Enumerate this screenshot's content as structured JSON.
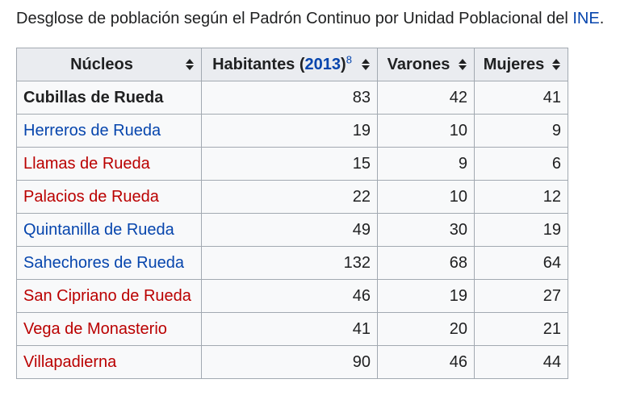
{
  "caption": {
    "text_before": "Desglose de población según el Padrón Continuo por Unidad Poblacional del ",
    "link": "INE",
    "text_after": "."
  },
  "table": {
    "headers": {
      "nucleos": "Núcleos",
      "habitantes_prefix": "Habitantes (",
      "habitantes_year": "2013",
      "habitantes_suffix": ")",
      "habitantes_ref": "8",
      "varones": "Varones",
      "mujeres": "Mujeres"
    },
    "rows": [
      {
        "name": "Cubillas de Rueda",
        "habitantes": "83",
        "varones": "42",
        "mujeres": "41",
        "style": "bold"
      },
      {
        "name": "Herreros de Rueda",
        "habitantes": "19",
        "varones": "10",
        "mujeres": "9",
        "style": "blue-link"
      },
      {
        "name": "Llamas de Rueda",
        "habitantes": "15",
        "varones": "9",
        "mujeres": "6",
        "style": "red-link"
      },
      {
        "name": "Palacios de Rueda",
        "habitantes": "22",
        "varones": "10",
        "mujeres": "12",
        "style": "red-link"
      },
      {
        "name": "Quintanilla de Rueda",
        "habitantes": "49",
        "varones": "30",
        "mujeres": "19",
        "style": "blue-link"
      },
      {
        "name": "Sahechores de Rueda",
        "habitantes": "132",
        "varones": "68",
        "mujeres": "64",
        "style": "blue-link"
      },
      {
        "name": "San Cipriano de Rueda",
        "habitantes": "46",
        "varones": "19",
        "mujeres": "27",
        "style": "red-link"
      },
      {
        "name": "Vega de Monasterio",
        "habitantes": "41",
        "varones": "20",
        "mujeres": "21",
        "style": "red-link"
      },
      {
        "name": "Villapadierna",
        "habitantes": "90",
        "varones": "46",
        "mujeres": "44",
        "style": "red-link"
      }
    ]
  },
  "colors": {
    "link_blue": "#0645ad",
    "link_red": "#ba0000",
    "header_bg": "#eaecf0",
    "cell_bg": "#f8f9fa",
    "border": "#a2a9b1"
  }
}
